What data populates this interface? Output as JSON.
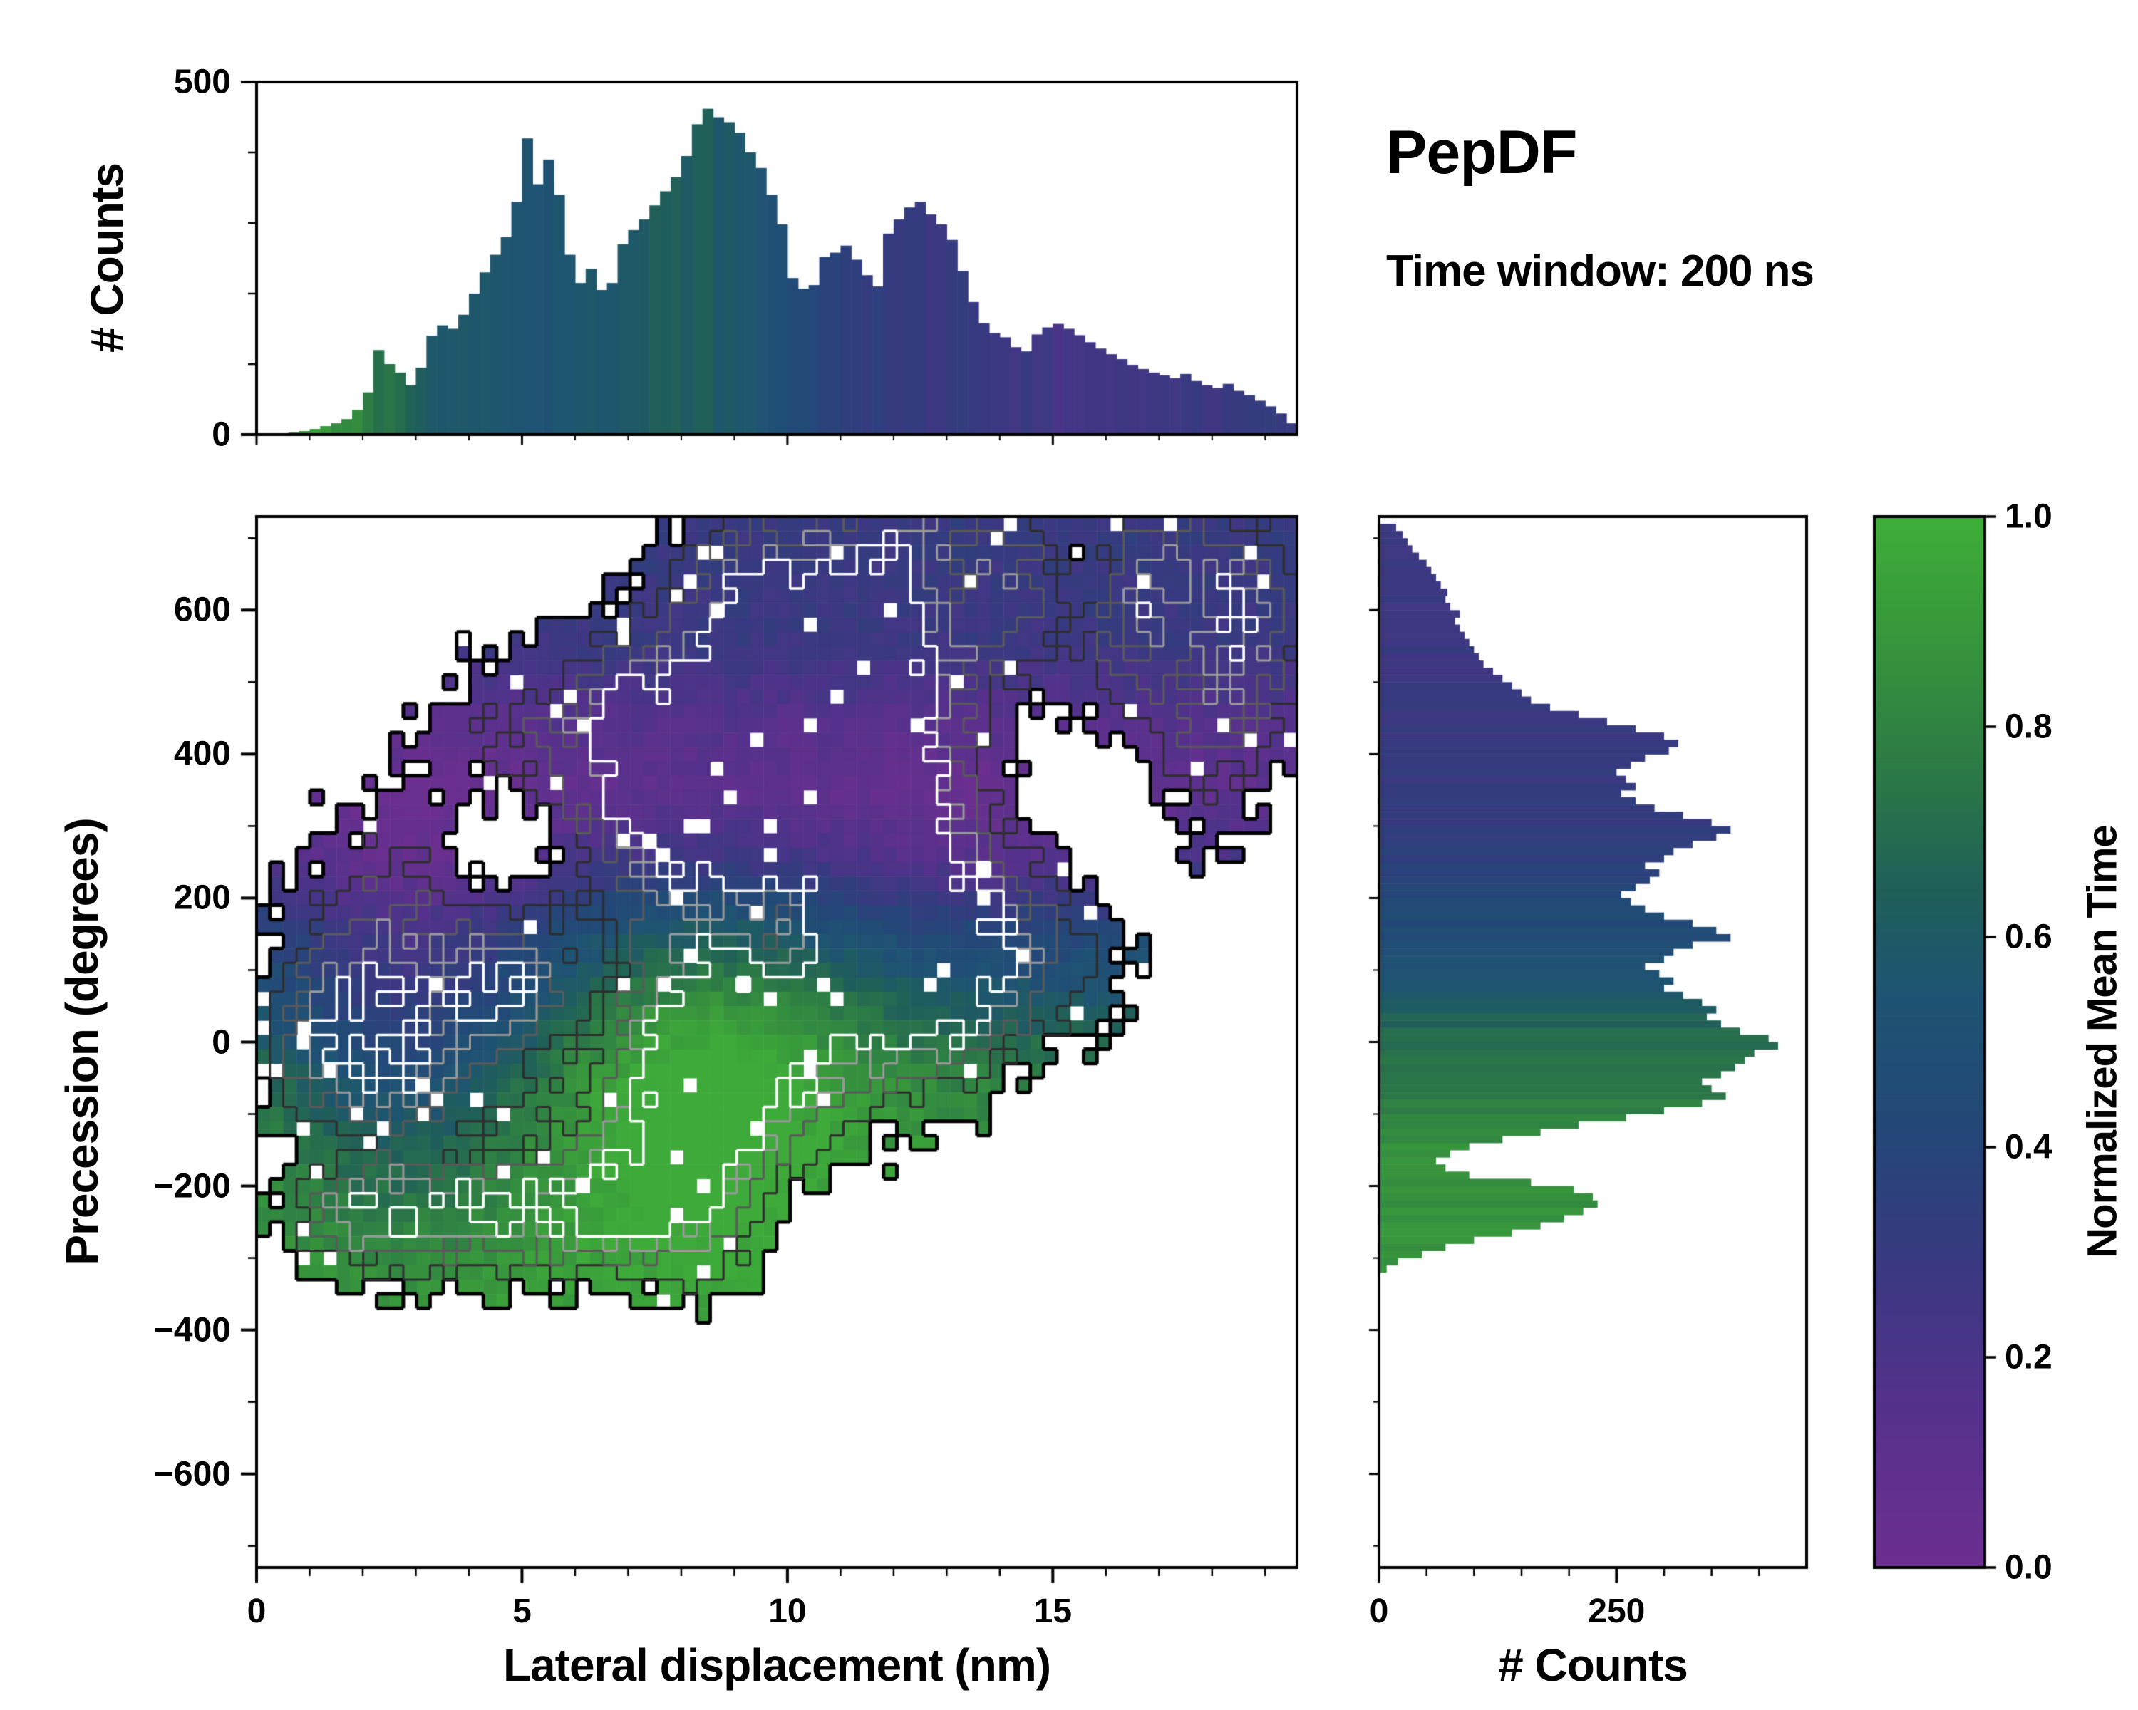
{
  "annotations": {
    "title": "PepDF",
    "subtitle": "Time window: 200 ns"
  },
  "colorbar": {
    "label": "Normalized Mean Time",
    "ticks": [
      {
        "v": 0.0,
        "label": "0.0"
      },
      {
        "v": 0.2,
        "label": "0.2"
      },
      {
        "v": 0.4,
        "label": "0.4"
      },
      {
        "v": 0.6,
        "label": "0.6"
      },
      {
        "v": 0.8,
        "label": "0.8"
      },
      {
        "v": 1.0,
        "label": "1.0"
      }
    ]
  },
  "colormap": {
    "stops": [
      [
        0.0,
        "#6d2f90"
      ],
      [
        0.15,
        "#55318c"
      ],
      [
        0.3,
        "#373a80"
      ],
      [
        0.42,
        "#234878"
      ],
      [
        0.55,
        "#1e5472"
      ],
      [
        0.65,
        "#206058"
      ],
      [
        0.75,
        "#2b7747"
      ],
      [
        0.88,
        "#37953c"
      ],
      [
        1.0,
        "#3fae39"
      ]
    ]
  },
  "chart_data": [
    {
      "type": "bar",
      "panel": "top",
      "ylabel": "# Counts",
      "xlabel": "",
      "xlim": [
        0,
        19.6
      ],
      "ylim": [
        0,
        500
      ],
      "yticks": [
        {
          "v": 0,
          "label": "0"
        },
        {
          "v": 500,
          "label": "500"
        }
      ],
      "bin_width": 0.2,
      "counts": [
        0,
        0,
        2,
        3,
        5,
        8,
        12,
        16,
        22,
        35,
        60,
        120,
        100,
        88,
        70,
        95,
        140,
        155,
        150,
        170,
        200,
        230,
        255,
        280,
        330,
        420,
        355,
        390,
        340,
        255,
        215,
        235,
        205,
        215,
        270,
        290,
        305,
        325,
        345,
        365,
        395,
        440,
        462,
        450,
        443,
        428,
        400,
        378,
        340,
        298,
        222,
        207,
        212,
        252,
        258,
        268,
        248,
        226,
        210,
        285,
        305,
        322,
        330,
        312,
        298,
        276,
        232,
        188,
        158,
        144,
        138,
        124,
        118,
        142,
        152,
        157,
        150,
        141,
        131,
        122,
        114,
        107,
        99,
        93,
        88,
        84,
        80,
        86,
        76,
        70,
        66,
        72,
        62,
        56,
        48,
        40,
        30,
        16
      ],
      "color_value_points": [
        [
          0.3,
          0.92
        ],
        [
          1.2,
          0.88
        ],
        [
          2.0,
          0.8
        ],
        [
          2.6,
          0.7
        ],
        [
          3.2,
          0.62
        ],
        [
          4.0,
          0.58
        ],
        [
          5.0,
          0.55
        ],
        [
          6.0,
          0.55
        ],
        [
          7.0,
          0.6
        ],
        [
          8.0,
          0.63
        ],
        [
          9.0,
          0.6
        ],
        [
          9.6,
          0.55
        ],
        [
          10.2,
          0.45
        ],
        [
          11.0,
          0.35
        ],
        [
          12.0,
          0.32
        ],
        [
          13.0,
          0.3
        ],
        [
          14.0,
          0.28
        ],
        [
          15.0,
          0.24
        ],
        [
          16.5,
          0.24
        ],
        [
          18.0,
          0.28
        ],
        [
          19.5,
          0.3
        ]
      ]
    },
    {
      "type": "heatmap",
      "panel": "main",
      "xlabel": "Lateral displacement (nm)",
      "ylabel": "Precession (degrees)",
      "color_meaning": "Normalized Mean Time",
      "xlim": [
        0,
        19.6
      ],
      "ylim": [
        -730,
        730
      ],
      "xticks": [
        {
          "v": 0,
          "label": "0"
        },
        {
          "v": 5,
          "label": "5"
        },
        {
          "v": 10,
          "label": "10"
        },
        {
          "v": 15,
          "label": "15"
        }
      ],
      "yticks": [
        {
          "v": 600,
          "label": "600"
        },
        {
          "v": 400,
          "label": "400"
        },
        {
          "v": 200,
          "label": "200"
        },
        {
          "v": 0,
          "label": "0"
        },
        {
          "v": -200,
          "label": "−200"
        },
        {
          "v": -400,
          "label": "−400"
        },
        {
          "v": -600,
          "label": "−600"
        }
      ],
      "grid_nx": 78,
      "grid_ny": 73,
      "presence_threshold": 0.22,
      "noise_amp": 0.12,
      "dropout_rate": 0.035,
      "contour_levels": [
        {
          "level": 0.22,
          "color": "#000000",
          "width": 5
        },
        {
          "level": 0.42,
          "color": "#2e2e2e",
          "width": 3
        },
        {
          "level": 0.6,
          "color": "#5a5a5a",
          "width": 3
        },
        {
          "level": 0.76,
          "color": "#9a9a9a",
          "width": 3
        },
        {
          "level": 0.88,
          "color": "#ffffff",
          "width": 3.5
        }
      ],
      "density_blobs": [
        [
          3.2,
          30,
          1.6,
          160,
          0.5
        ],
        [
          4.7,
          90,
          0.8,
          70,
          0.5
        ],
        [
          2.2,
          -60,
          1.2,
          120,
          0.35
        ],
        [
          1.0,
          -10,
          0.8,
          100,
          0.3
        ],
        [
          2.0,
          150,
          1.0,
          120,
          0.3
        ],
        [
          8.1,
          -60,
          1.0,
          90,
          0.75
        ],
        [
          8.6,
          40,
          1.5,
          120,
          0.4
        ],
        [
          9.5,
          -80,
          1.2,
          100,
          0.3
        ],
        [
          10.5,
          30,
          1.5,
          120,
          0.45
        ],
        [
          12.3,
          60,
          1.2,
          100,
          0.35
        ],
        [
          13.0,
          40,
          0.8,
          80,
          0.3
        ],
        [
          3.5,
          -230,
          1.5,
          70,
          0.5
        ],
        [
          5.5,
          -230,
          1.5,
          80,
          0.45
        ],
        [
          7.5,
          -240,
          1.0,
          70,
          0.4
        ],
        [
          1.6,
          -240,
          0.9,
          60,
          0.4
        ],
        [
          8.6,
          -260,
          0.8,
          70,
          0.35
        ],
        [
          6.5,
          -190,
          0.9,
          70,
          0.35
        ],
        [
          5.5,
          380,
          1.8,
          140,
          0.45
        ],
        [
          7.5,
          330,
          1.5,
          130,
          0.5
        ],
        [
          9.5,
          350,
          1.8,
          150,
          0.45
        ],
        [
          9.0,
          430,
          1.3,
          120,
          0.35
        ],
        [
          10.8,
          380,
          1.3,
          110,
          0.35
        ],
        [
          11.5,
          260,
          1.5,
          120,
          0.5
        ],
        [
          13.5,
          180,
          1.5,
          120,
          0.45
        ],
        [
          15.0,
          120,
          1.2,
          100,
          0.35
        ],
        [
          12.5,
          450,
          1.8,
          150,
          0.4
        ],
        [
          11.5,
          620,
          1.5,
          120,
          0.45
        ],
        [
          14.5,
          600,
          1.8,
          130,
          0.4
        ],
        [
          16.5,
          550,
          1.5,
          130,
          0.4
        ],
        [
          17.5,
          400,
          1.2,
          120,
          0.35
        ],
        [
          18.5,
          620,
          1.0,
          100,
          0.35
        ],
        [
          18.8,
          520,
          0.8,
          100,
          0.3
        ],
        [
          10.0,
          550,
          1.2,
          110,
          0.35
        ],
        [
          9.0,
          650,
          1.0,
          90,
          0.35
        ],
        [
          13.0,
          680,
          1.2,
          80,
          0.35
        ],
        [
          17.3,
          660,
          1.0,
          80,
          0.3
        ],
        [
          6.3,
          180,
          0.9,
          90,
          0.3
        ],
        [
          6.9,
          480,
          0.35,
          45,
          0.3
        ],
        [
          6.6,
          210,
          0.7,
          90,
          -0.4
        ],
        [
          4.6,
          265,
          0.7,
          80,
          -0.35
        ],
        [
          5.4,
          275,
          0.7,
          70,
          -0.3
        ],
        [
          9.9,
          180,
          0.8,
          70,
          -0.35
        ],
        [
          14.9,
          430,
          1.3,
          140,
          -0.45
        ],
        [
          10.6,
          500,
          0.55,
          70,
          -0.35
        ],
        [
          13.1,
          635,
          0.6,
          60,
          -0.35
        ],
        [
          16.4,
          300,
          0.7,
          90,
          -0.3
        ],
        [
          15.6,
          655,
          0.5,
          60,
          -0.3
        ],
        [
          17.6,
          560,
          0.5,
          70,
          -0.28
        ],
        [
          4.0,
          -150,
          2.0,
          40,
          -0.3
        ],
        [
          1.5,
          -150,
          1.0,
          40,
          -0.25
        ]
      ],
      "value_profile_y": [
        [
          -730,
          0.92
        ],
        [
          -300,
          0.92
        ],
        [
          -150,
          0.88
        ],
        [
          -50,
          0.8
        ],
        [
          50,
          0.65
        ],
        [
          150,
          0.5
        ],
        [
          250,
          0.25
        ],
        [
          350,
          0.1
        ],
        [
          450,
          0.16
        ],
        [
          550,
          0.28
        ],
        [
          730,
          0.3
        ]
      ],
      "value_blobs": [
        [
          8.1,
          -60,
          1.8,
          160,
          0.18
        ],
        [
          9.8,
          30,
          2.5,
          130,
          0.12
        ],
        [
          3.0,
          80,
          2.0,
          190,
          -0.28
        ],
        [
          13.5,
          180,
          2.6,
          160,
          -0.12
        ],
        [
          2.5,
          -120,
          1.6,
          150,
          -0.1
        ]
      ]
    },
    {
      "type": "bar",
      "panel": "right",
      "orientation": "horizontal",
      "xlabel": "# Counts",
      "ylabel": "",
      "xlim": [
        0,
        450
      ],
      "ylim": [
        -730,
        730
      ],
      "xticks": [
        {
          "v": 0,
          "label": "0"
        },
        {
          "v": 250,
          "label": "250"
        }
      ],
      "bin_width": 10,
      "y_start": -320,
      "counts": [
        8,
        20,
        45,
        70,
        100,
        140,
        170,
        195,
        215,
        230,
        225,
        205,
        160,
        95,
        70,
        60,
        75,
        95,
        130,
        170,
        210,
        260,
        300,
        340,
        365,
        350,
        340,
        360,
        375,
        385,
        395,
        420,
        410,
        380,
        360,
        345,
        355,
        340,
        320,
        300,
        310,
        295,
        280,
        300,
        310,
        330,
        370,
        355,
        330,
        300,
        280,
        265,
        255,
        270,
        285,
        295,
        280,
        300,
        310,
        330,
        355,
        370,
        350,
        320,
        290,
        270,
        255,
        270,
        260,
        250,
        265,
        280,
        305,
        315,
        300,
        270,
        240,
        210,
        180,
        160,
        150,
        140,
        130,
        120,
        110,
        105,
        100,
        95,
        90,
        85,
        80,
        85,
        75,
        70,
        72,
        65,
        60,
        55,
        50,
        42,
        35,
        30,
        25,
        18
      ],
      "color_value_points": [
        [
          -320,
          0.88
        ],
        [
          -140,
          0.85
        ],
        [
          -80,
          0.78
        ],
        [
          -20,
          0.72
        ],
        [
          20,
          0.68
        ],
        [
          60,
          0.6
        ],
        [
          100,
          0.52
        ],
        [
          150,
          0.45
        ],
        [
          200,
          0.42
        ],
        [
          250,
          0.36
        ],
        [
          300,
          0.32
        ],
        [
          400,
          0.3
        ],
        [
          500,
          0.28
        ],
        [
          720,
          0.27
        ]
      ]
    }
  ]
}
